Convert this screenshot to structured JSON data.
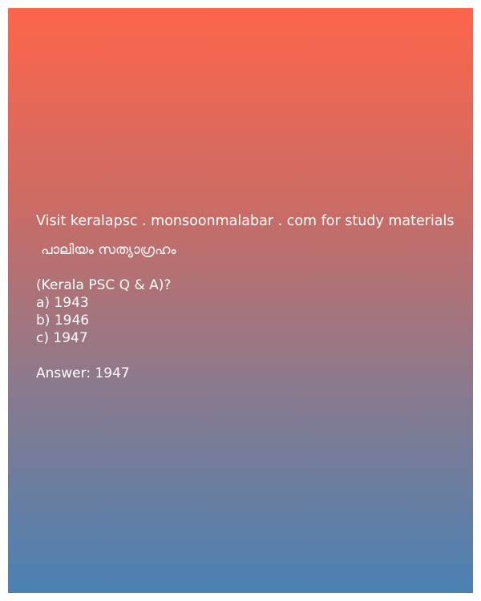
{
  "post": {
    "promo": "Visit keralapsc . monsoonmalabar . com for study materials",
    "topic": "പാലിയം സത്യാഗ്രഹം",
    "question": "(Kerala PSC Q & A)?",
    "options": [
      "a) 1943",
      "b) 1946",
      "c) 1947"
    ],
    "answer": "Answer: 1947"
  },
  "colors": {
    "gradient_top": "#fe654b",
    "gradient_bottom": "#4a81b2",
    "text": "#ffffff"
  }
}
